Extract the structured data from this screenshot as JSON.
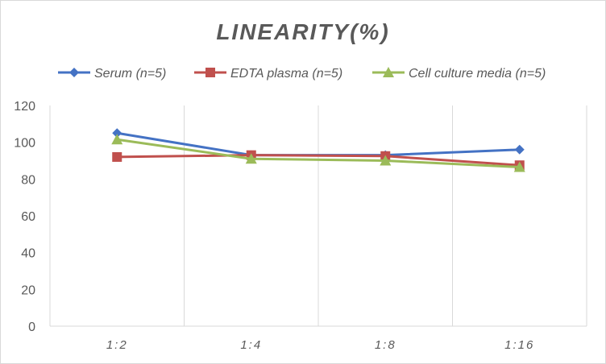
{
  "chart_data": {
    "type": "line",
    "title": "LINEARITY(%)",
    "xlabel": "",
    "ylabel": "",
    "categories": [
      "1:2",
      "1:4",
      "1:8",
      "1:16"
    ],
    "ylim": [
      0,
      120
    ],
    "yticks": [
      0,
      20,
      40,
      60,
      80,
      100,
      120
    ],
    "grid": "vertical",
    "legend": "top",
    "series": [
      {
        "name": "Serum (n=5)",
        "values": [
          105,
          93,
          93,
          96
        ],
        "color": "#4472c4",
        "marker": "diamond"
      },
      {
        "name": "EDTA plasma (n=5)",
        "values": [
          92,
          93,
          92.5,
          87.5
        ],
        "color": "#c0504d",
        "marker": "square"
      },
      {
        "name": "Cell culture media (n=5)",
        "values": [
          101.5,
          91,
          90,
          86.5
        ],
        "color": "#9bbb59",
        "marker": "triangle"
      }
    ]
  }
}
